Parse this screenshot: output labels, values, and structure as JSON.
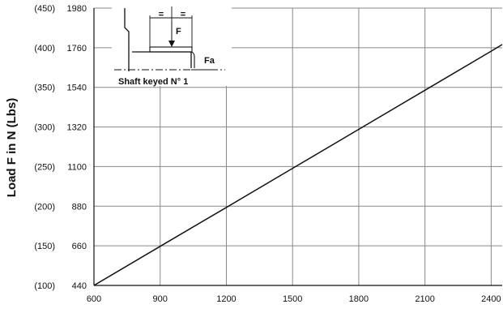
{
  "chart_data": {
    "type": "line",
    "title": "",
    "xlabel": "",
    "ylabel": "Load F in N (Lbs)",
    "xlim": [
      600,
      2450
    ],
    "ylim": [
      440,
      1980
    ],
    "x_ticks": [
      {
        "value": 600,
        "label": "600"
      },
      {
        "value": 900,
        "label": "900"
      },
      {
        "value": 1200,
        "label": "1200"
      },
      {
        "value": 1500,
        "label": "1500"
      },
      {
        "value": 1800,
        "label": "1800"
      },
      {
        "value": 2100,
        "label": "2100"
      },
      {
        "value": 2400,
        "label": "2400"
      }
    ],
    "y_ticks": [
      {
        "value": 440,
        "label": "440",
        "alt_label": "(100)"
      },
      {
        "value": 660,
        "label": "660",
        "alt_label": "(150)"
      },
      {
        "value": 880,
        "label": "880",
        "alt_label": "(200)"
      },
      {
        "value": 1100,
        "label": "1100",
        "alt_label": "(250)"
      },
      {
        "value": 1320,
        "label": "1320",
        "alt_label": "(300)"
      },
      {
        "value": 1540,
        "label": "1540",
        "alt_label": "(350)"
      },
      {
        "value": 1760,
        "label": "1760",
        "alt_label": "(400)"
      },
      {
        "value": 1980,
        "label": "1980",
        "alt_label": "(450)"
      }
    ],
    "grid": true,
    "legend": "none",
    "series": [
      {
        "x": [
          600,
          900,
          1200,
          1500,
          1800,
          2100,
          2400,
          2450
        ],
        "y": [
          440,
          657,
          873,
          1090,
          1307,
          1524,
          1741,
          1778
        ]
      }
    ],
    "inset": {
      "label_force": "F",
      "label_axial": "Fa",
      "caption": "Shaft keyed N° 1",
      "equal_mark_left": "=",
      "equal_mark_right": "="
    }
  },
  "colors": {
    "line": "#111111",
    "grid": "#888888",
    "axis": "#111111",
    "text": "#111111",
    "background": "#ffffff"
  }
}
